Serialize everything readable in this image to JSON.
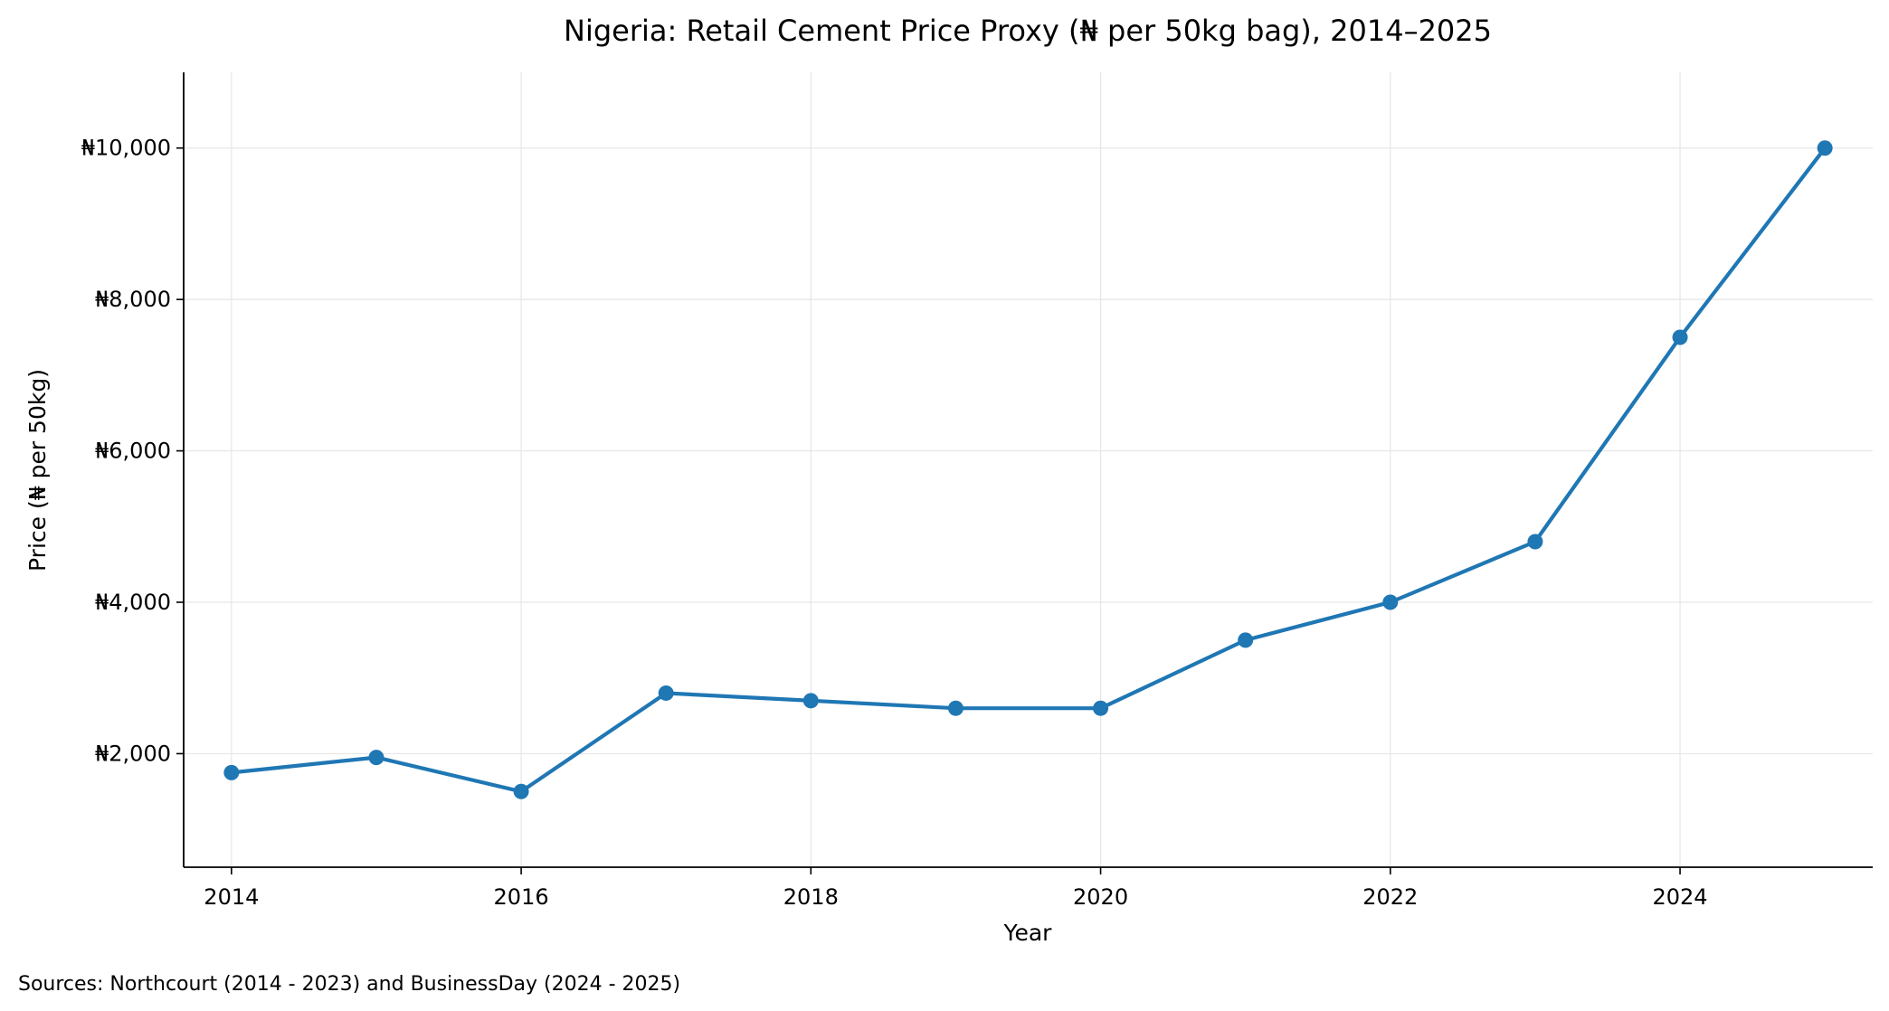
{
  "chart_data": {
    "type": "line",
    "title": "Nigeria: Retail Cement Price Proxy (₦ per 50kg bag), 2014–2025",
    "xlabel": "Year",
    "ylabel": "Price (₦ per 50kg)",
    "x_ticks": [
      "2014",
      "2016",
      "2018",
      "2020",
      "2022",
      "2024"
    ],
    "y_ticks": [
      {
        "value": 2000,
        "label": "₦2,000"
      },
      {
        "value": 4000,
        "label": "₦4,000"
      },
      {
        "value": 6000,
        "label": "₦6,000"
      },
      {
        "value": 8000,
        "label": "₦8,000"
      },
      {
        "value": 10000,
        "label": "₦10,000"
      }
    ],
    "xlim": [
      2013.67,
      2025.33
    ],
    "ylim": [
      500,
      11000
    ],
    "grid": true,
    "series": [
      {
        "color": "#1f77b4",
        "x": [
          2014,
          2015,
          2016,
          2017,
          2018,
          2019,
          2020,
          2021,
          2022,
          2023,
          2024,
          2025
        ],
        "values": [
          1750,
          1950,
          1500,
          2800,
          2700,
          2600,
          2600,
          3500,
          4000,
          4800,
          7500,
          10000
        ]
      }
    ]
  },
  "footnote": "Sources: Northcourt (2014 - 2023) and BusinessDay (2024 - 2025)"
}
